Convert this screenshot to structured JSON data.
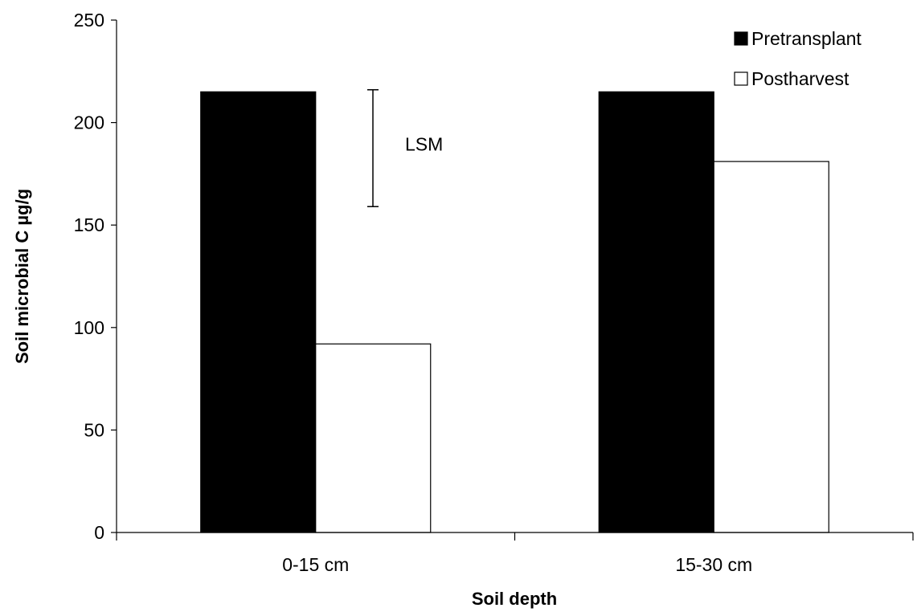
{
  "chart_data": {
    "type": "bar",
    "title": "",
    "xlabel": "Soil depth",
    "ylabel": "Soil microbial C µg/g",
    "categories": [
      "0-15 cm",
      "15-30 cm"
    ],
    "series": [
      {
        "name": "Pretransplant",
        "values": [
          215,
          215
        ],
        "fill": "#000000"
      },
      {
        "name": "Postharvest",
        "values": [
          92,
          181
        ],
        "fill": "#ffffff"
      }
    ],
    "ylim": [
      0,
      250
    ],
    "yticks": [
      0,
      50,
      100,
      150,
      200,
      250
    ],
    "grid": false,
    "legend_position": "top-right",
    "annotations": [
      {
        "label": "LSM",
        "type": "error-bar",
        "low": 159,
        "high": 216
      }
    ]
  }
}
